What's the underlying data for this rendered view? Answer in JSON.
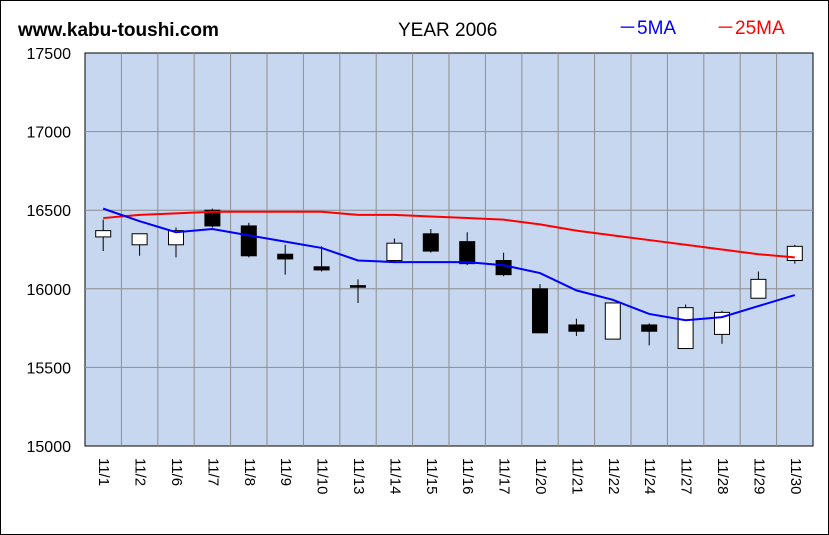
{
  "header": {
    "site": "www.kabu-toushi.com",
    "title": "YEAR 2006",
    "legend_5ma": "－5MA",
    "legend_25ma": "－25MA"
  },
  "colors": {
    "plot_bg": "#c6d7ef",
    "grid": "#8e8e8e",
    "ma5": "#0000ff",
    "ma25": "#ff0000",
    "up_candle": "#ffffff",
    "down_candle": "#000000"
  },
  "chart_data": {
    "type": "candlestick",
    "title": "YEAR 2006",
    "ylim": [
      15000,
      17500
    ],
    "yticks": [
      15000,
      15500,
      16000,
      16500,
      17000,
      17500
    ],
    "categories": [
      "11/1",
      "11/2",
      "11/6",
      "11/7",
      "11/8",
      "11/9",
      "11/10",
      "11/13",
      "11/14",
      "11/15",
      "11/16",
      "11/17",
      "11/20",
      "11/21",
      "11/22",
      "11/24",
      "11/27",
      "11/28",
      "11/29",
      "11/30"
    ],
    "candles": [
      {
        "open": 16330,
        "close": 16370,
        "high": 16440,
        "low": 16240
      },
      {
        "open": 16280,
        "close": 16350,
        "high": 16350,
        "low": 16210
      },
      {
        "open": 16280,
        "close": 16370,
        "high": 16390,
        "low": 16200
      },
      {
        "open": 16500,
        "close": 16400,
        "high": 16510,
        "low": 16390
      },
      {
        "open": 16400,
        "close": 16210,
        "high": 16420,
        "low": 16200
      },
      {
        "open": 16220,
        "close": 16190,
        "high": 16280,
        "low": 16090
      },
      {
        "open": 16140,
        "close": 16120,
        "high": 16270,
        "low": 16110
      },
      {
        "open": 16020,
        "close": 16010,
        "high": 16060,
        "low": 15910
      },
      {
        "open": 16180,
        "close": 16290,
        "high": 16320,
        "low": 16170
      },
      {
        "open": 16350,
        "close": 16240,
        "high": 16380,
        "low": 16230
      },
      {
        "open": 16300,
        "close": 16160,
        "high": 16360,
        "low": 16150
      },
      {
        "open": 16180,
        "close": 16090,
        "high": 16230,
        "low": 16080
      },
      {
        "open": 16000,
        "close": 15720,
        "high": 16030,
        "low": 15720
      },
      {
        "open": 15770,
        "close": 15730,
        "high": 15810,
        "low": 15700
      },
      {
        "open": 15680,
        "close": 15910,
        "high": 15910,
        "low": 15680
      },
      {
        "open": 15770,
        "close": 15730,
        "high": 15780,
        "low": 15640
      },
      {
        "open": 15620,
        "close": 15880,
        "high": 15900,
        "low": 15620
      },
      {
        "open": 15710,
        "close": 15850,
        "high": 15860,
        "low": 15650
      },
      {
        "open": 15940,
        "close": 16060,
        "high": 16110,
        "low": 15940
      },
      {
        "open": 16180,
        "close": 16270,
        "high": 16280,
        "low": 16160
      }
    ],
    "series": [
      {
        "name": "5MA",
        "values": [
          16510,
          16430,
          16360,
          16380,
          16340,
          16300,
          16260,
          16180,
          16170,
          16170,
          16170,
          16150,
          16100,
          15990,
          15930,
          15840,
          15800,
          15820,
          15890,
          15960
        ]
      },
      {
        "name": "25MA",
        "values": [
          16450,
          16470,
          16480,
          16490,
          16490,
          16490,
          16490,
          16470,
          16470,
          16460,
          16450,
          16440,
          16410,
          16370,
          16340,
          16310,
          16280,
          16250,
          16220,
          16200
        ]
      }
    ]
  }
}
